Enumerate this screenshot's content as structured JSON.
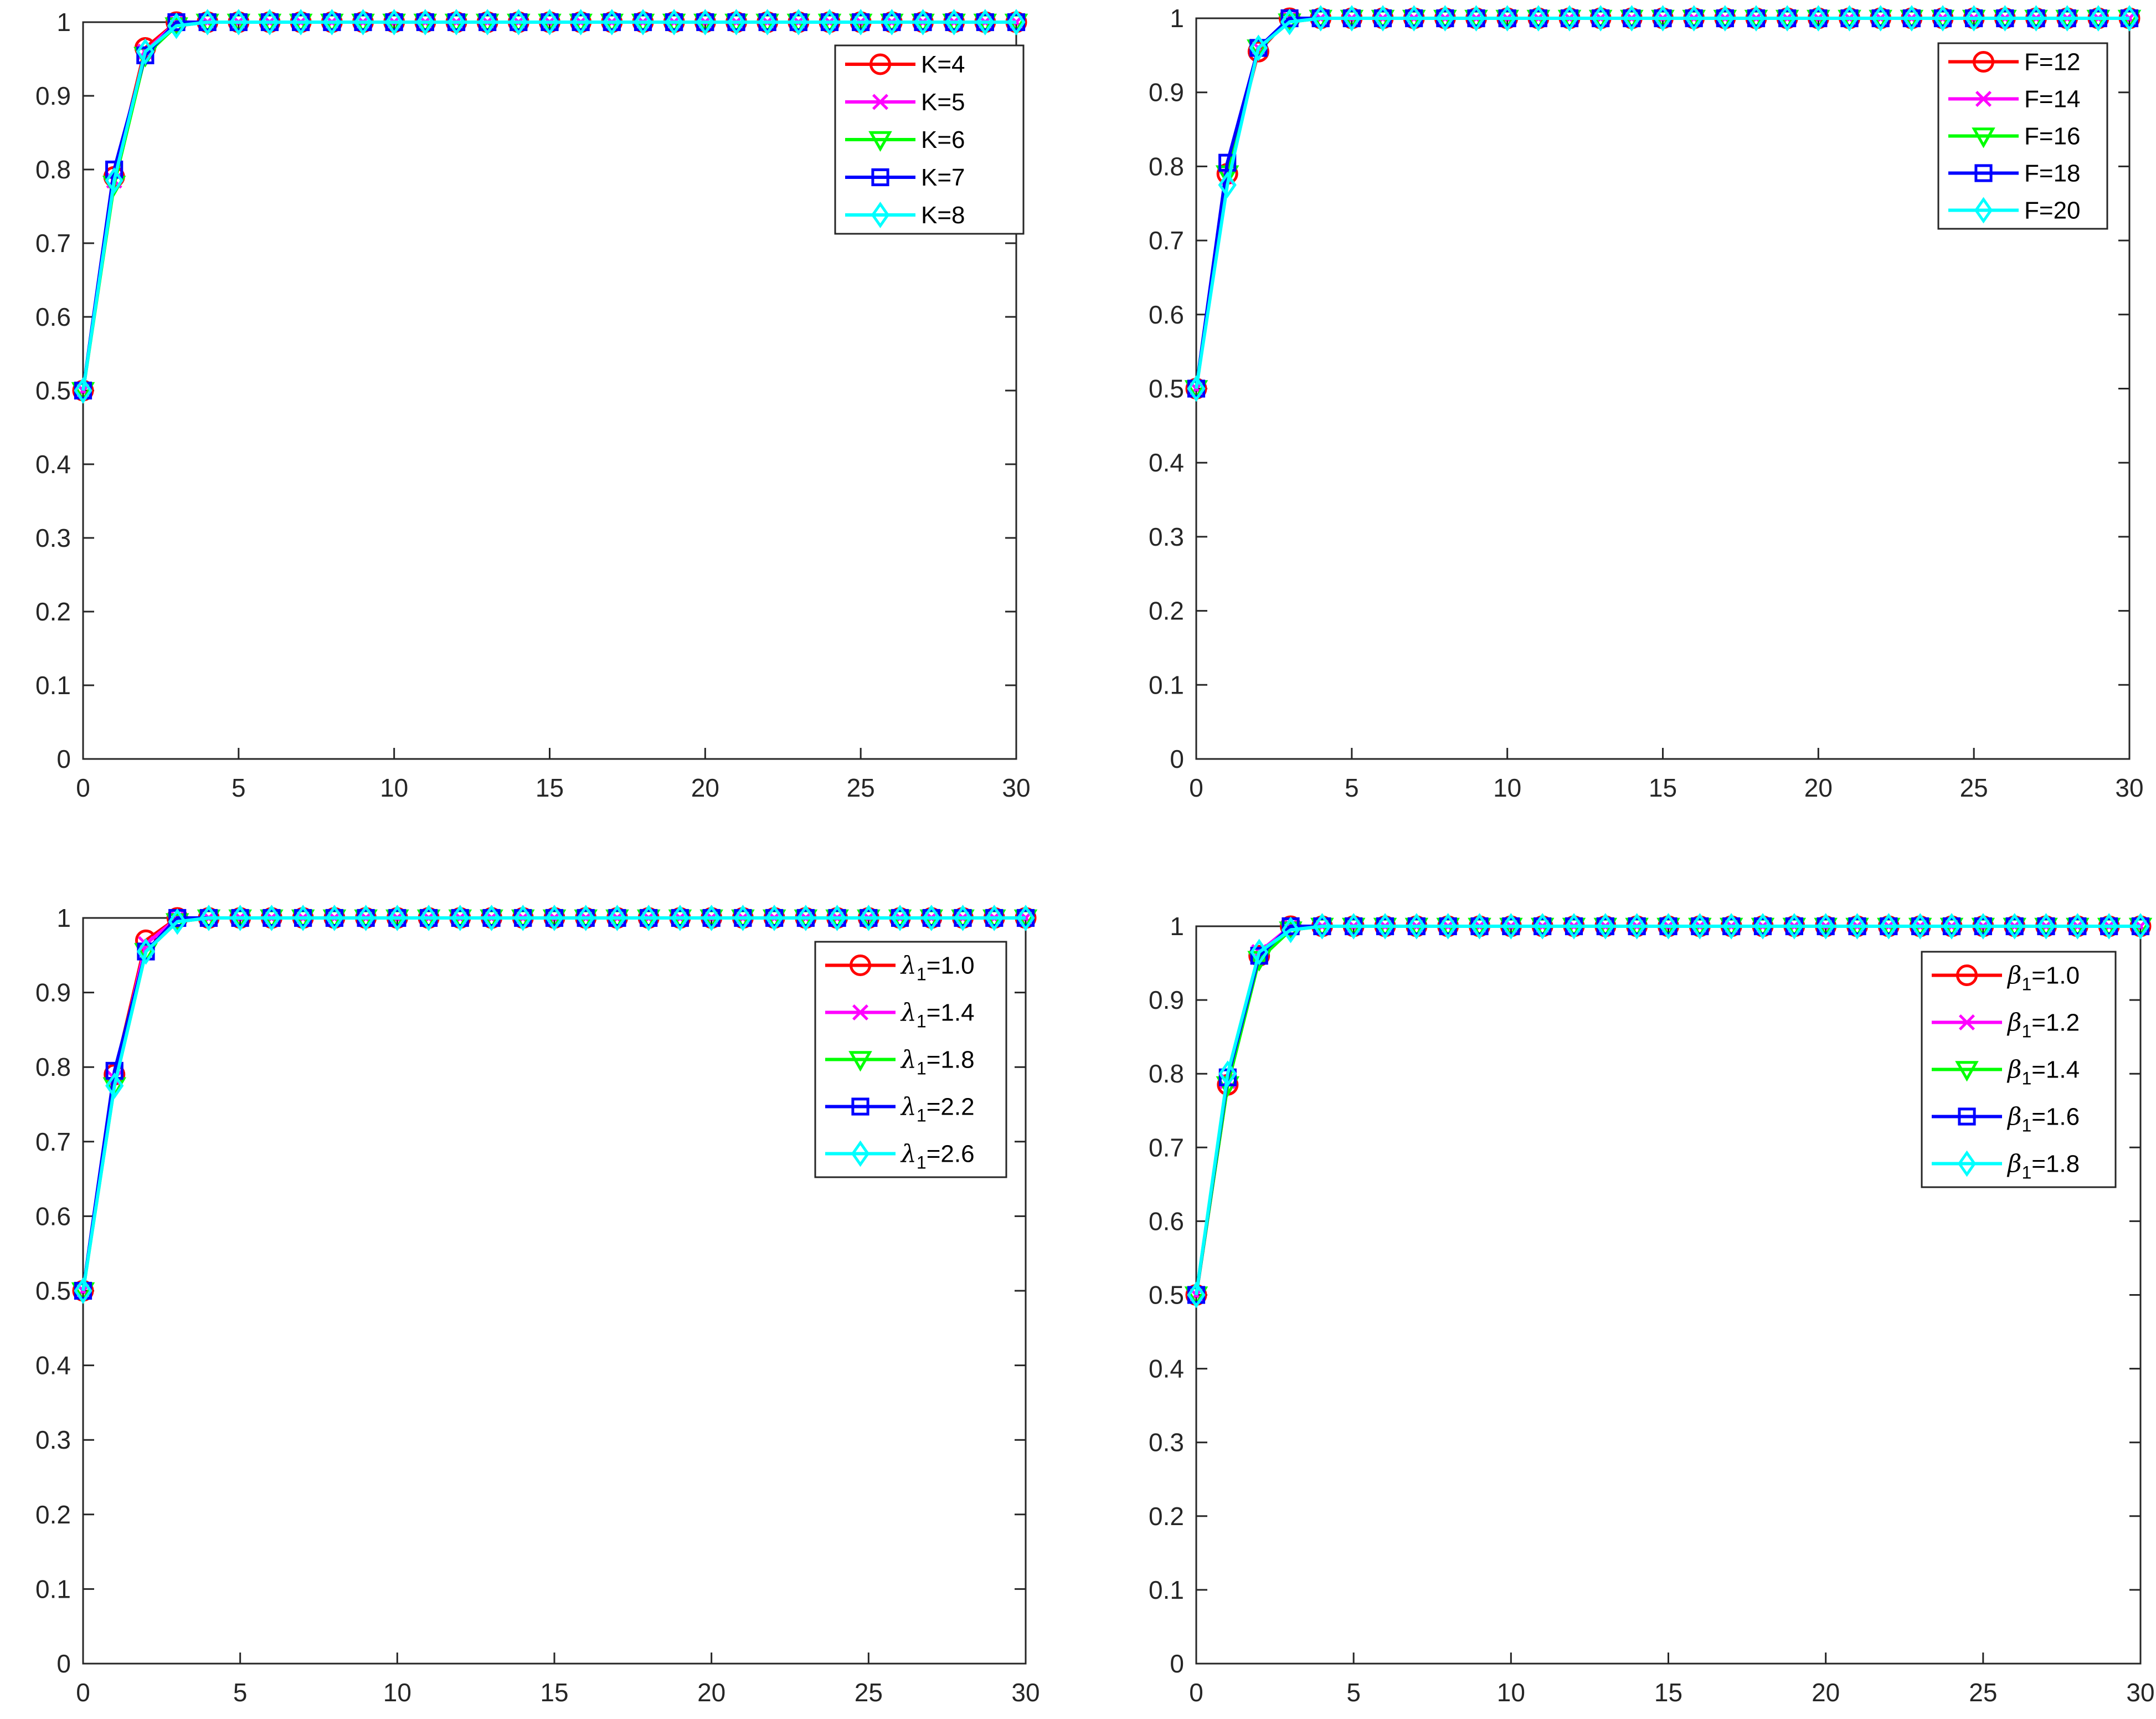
{
  "figure": {
    "panels": [
      {
        "id": "k",
        "legend_position": "top-right",
        "legend": [
          {
            "sym": "",
            "sub": "",
            "text": "K=4"
          },
          {
            "sym": "",
            "sub": "",
            "text": "K=5"
          },
          {
            "sym": "",
            "sub": "",
            "text": "K=6"
          },
          {
            "sym": "",
            "sub": "",
            "text": "K=7"
          },
          {
            "sym": "",
            "sub": "",
            "text": "K=8"
          }
        ]
      },
      {
        "id": "f",
        "legend_position": "top-right",
        "legend": [
          {
            "sym": "",
            "sub": "",
            "text": "F=12"
          },
          {
            "sym": "",
            "sub": "",
            "text": "F=14"
          },
          {
            "sym": "",
            "sub": "",
            "text": "F=16"
          },
          {
            "sym": "",
            "sub": "",
            "text": "F=18"
          },
          {
            "sym": "",
            "sub": "",
            "text": "F=20"
          }
        ]
      },
      {
        "id": "lambda",
        "legend_position": "top-right",
        "legend": [
          {
            "sym": "λ",
            "sub": "1",
            "text": "=1.0"
          },
          {
            "sym": "λ",
            "sub": "1",
            "text": "=1.4"
          },
          {
            "sym": "λ",
            "sub": "1",
            "text": "=1.8"
          },
          {
            "sym": "λ",
            "sub": "1",
            "text": "=2.2"
          },
          {
            "sym": "λ",
            "sub": "1",
            "text": "=2.6"
          }
        ]
      },
      {
        "id": "beta",
        "legend_position": "top-right",
        "legend": [
          {
            "sym": "β",
            "sub": "1",
            "text": "=1.0"
          },
          {
            "sym": "β",
            "sub": "1",
            "text": "=1.2"
          },
          {
            "sym": "β",
            "sub": "1",
            "text": "=1.4"
          },
          {
            "sym": "β",
            "sub": "1",
            "text": "=1.6"
          },
          {
            "sym": "β",
            "sub": "1",
            "text": "=1.8"
          }
        ]
      }
    ]
  },
  "chart_data": [
    {
      "type": "line",
      "xlim": [
        0,
        30
      ],
      "ylim": [
        0,
        1
      ],
      "xticks": [
        "0",
        "5",
        "10",
        "15",
        "20",
        "25",
        "30"
      ],
      "yticks": [
        "0",
        "0.1",
        "0.2",
        "0.3",
        "0.4",
        "0.5",
        "0.6",
        "0.7",
        "0.8",
        "0.9",
        "1"
      ],
      "grid": false,
      "series": [
        {
          "name": "K=4",
          "color": "#ff0000",
          "marker": "circle",
          "values_head": [
            0.5,
            0.79,
            0.965,
            1.0
          ]
        },
        {
          "name": "K=5",
          "color": "#ff00ff",
          "marker": "x",
          "values_head": [
            0.5,
            0.785,
            0.96,
            1.0
          ]
        },
        {
          "name": "K=6",
          "color": "#00ff00",
          "marker": "triangle-down",
          "values_head": [
            0.5,
            0.78,
            0.955,
            0.995
          ]
        },
        {
          "name": "K=7",
          "color": "#0000ff",
          "marker": "square",
          "values_head": [
            0.5,
            0.8,
            0.955,
            1.0
          ]
        },
        {
          "name": "K=8",
          "color": "#00ffff",
          "marker": "diamond",
          "values_head": [
            0.5,
            0.785,
            0.96,
            0.995
          ]
        }
      ],
      "plateau": 1.0,
      "x_max": 30
    },
    {
      "type": "line",
      "xlim": [
        0,
        30
      ],
      "ylim": [
        0,
        1
      ],
      "xticks": [
        "0",
        "5",
        "10",
        "15",
        "20",
        "25",
        "30"
      ],
      "yticks": [
        "0",
        "0.1",
        "0.2",
        "0.3",
        "0.4",
        "0.5",
        "0.6",
        "0.7",
        "0.8",
        "0.9",
        "1"
      ],
      "grid": false,
      "series": [
        {
          "name": "F=12",
          "color": "#ff0000",
          "marker": "circle",
          "values_head": [
            0.5,
            0.79,
            0.955,
            1.0
          ]
        },
        {
          "name": "F=14",
          "color": "#ff00ff",
          "marker": "x",
          "values_head": [
            0.5,
            0.785,
            0.96,
            1.0
          ]
        },
        {
          "name": "F=16",
          "color": "#00ff00",
          "marker": "triangle-down",
          "values_head": [
            0.5,
            0.79,
            0.96,
            0.995
          ]
        },
        {
          "name": "F=18",
          "color": "#0000ff",
          "marker": "square",
          "values_head": [
            0.5,
            0.805,
            0.96,
            1.0
          ]
        },
        {
          "name": "F=20",
          "color": "#00ffff",
          "marker": "diamond",
          "values_head": [
            0.5,
            0.775,
            0.96,
            0.995
          ]
        }
      ],
      "plateau": 1.0,
      "x_max": 30
    },
    {
      "type": "line",
      "xlim": [
        0,
        30
      ],
      "ylim": [
        0,
        1
      ],
      "xticks": [
        "0",
        "5",
        "10",
        "15",
        "20",
        "25",
        "30"
      ],
      "yticks": [
        "0",
        "0.1",
        "0.2",
        "0.3",
        "0.4",
        "0.5",
        "0.6",
        "0.7",
        "0.8",
        "0.9",
        "1"
      ],
      "grid": false,
      "series": [
        {
          "name": "λ1=1.0",
          "color": "#ff0000",
          "marker": "circle",
          "values_head": [
            0.5,
            0.79,
            0.97,
            1.0
          ]
        },
        {
          "name": "λ1=1.4",
          "color": "#ff00ff",
          "marker": "x",
          "values_head": [
            0.5,
            0.785,
            0.965,
            1.0
          ]
        },
        {
          "name": "λ1=1.8",
          "color": "#00ff00",
          "marker": "triangle-down",
          "values_head": [
            0.5,
            0.775,
            0.955,
            0.995
          ]
        },
        {
          "name": "λ1=2.2",
          "color": "#0000ff",
          "marker": "square",
          "values_head": [
            0.5,
            0.795,
            0.955,
            1.0
          ]
        },
        {
          "name": "λ1=2.6",
          "color": "#00ffff",
          "marker": "diamond",
          "values_head": [
            0.5,
            0.775,
            0.955,
            0.995
          ]
        }
      ],
      "plateau": 1.0,
      "x_max": 30
    },
    {
      "type": "line",
      "xlim": [
        0,
        30
      ],
      "ylim": [
        0,
        1
      ],
      "xticks": [
        "0",
        "5",
        "10",
        "15",
        "20",
        "25",
        "30"
      ],
      "yticks": [
        "0",
        "0.1",
        "0.2",
        "0.3",
        "0.4",
        "0.5",
        "0.6",
        "0.7",
        "0.8",
        "0.9",
        "1"
      ],
      "grid": false,
      "series": [
        {
          "name": "β1=1.0",
          "color": "#ff0000",
          "marker": "circle",
          "values_head": [
            0.5,
            0.785,
            0.96,
            1.0
          ]
        },
        {
          "name": "β1=1.2",
          "color": "#ff00ff",
          "marker": "x",
          "values_head": [
            0.5,
            0.79,
            0.965,
            1.0
          ]
        },
        {
          "name": "β1=1.4",
          "color": "#00ff00",
          "marker": "triangle-down",
          "values_head": [
            0.5,
            0.785,
            0.955,
            0.995
          ]
        },
        {
          "name": "β1=1.6",
          "color": "#0000ff",
          "marker": "square",
          "values_head": [
            0.5,
            0.795,
            0.96,
            1.0
          ]
        },
        {
          "name": "β1=1.8",
          "color": "#00ffff",
          "marker": "diamond",
          "values_head": [
            0.5,
            0.8,
            0.965,
            0.995
          ]
        }
      ],
      "plateau": 1.0,
      "x_max": 30
    }
  ]
}
